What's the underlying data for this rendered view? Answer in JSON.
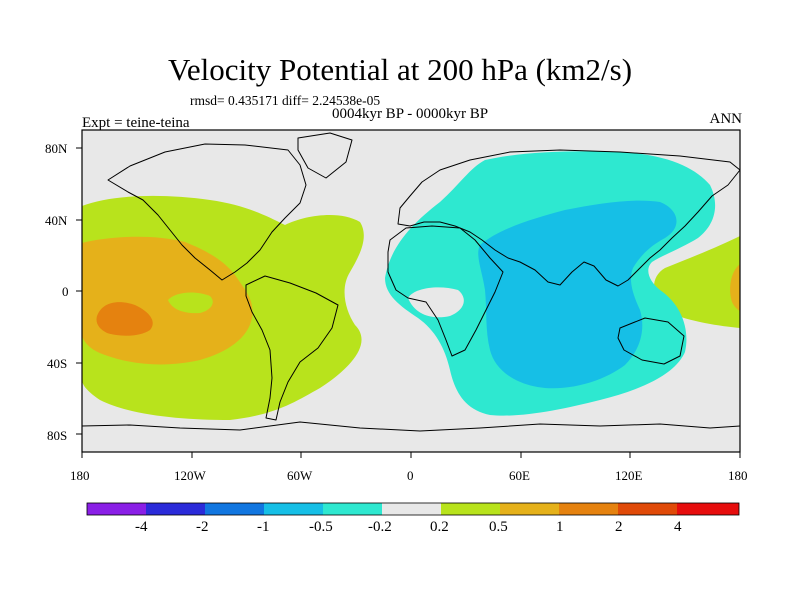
{
  "title": "Velocity Potential at 200 hPa (km2/s)",
  "stats_text": "rmsd= 0.435171  diff= 2.24538e-05",
  "period": "0004kyr BP - 0000kyr BP",
  "experiment": "Expt = teine-teina",
  "season": "ANN",
  "map": {
    "projection": "cylindrical-equidistant",
    "lon_range": [
      -180,
      180
    ],
    "lat_range": [
      -90,
      90
    ],
    "x_ticks": [
      {
        "lon": -180,
        "label": "180"
      },
      {
        "lon": -120,
        "label": "120W"
      },
      {
        "lon": -60,
        "label": "60W"
      },
      {
        "lon": 0,
        "label": "0"
      },
      {
        "lon": 60,
        "label": "60E"
      },
      {
        "lon": 120,
        "label": "120E"
      },
      {
        "lon": 180,
        "label": "180"
      }
    ],
    "y_ticks": [
      {
        "lat": 80,
        "label": "80N"
      },
      {
        "lat": 40,
        "label": "40N"
      },
      {
        "lat": 0,
        "label": "0"
      },
      {
        "lat": -40,
        "label": "40S"
      },
      {
        "lat": -80,
        "label": "80S"
      }
    ]
  },
  "colorbar": {
    "colors": [
      "#8a1fe6",
      "#2b2bd9",
      "#1176e0",
      "#16bfe6",
      "#2ee8d0",
      "#e8e8e8",
      "#b8e31c",
      "#e5b11a",
      "#e5820f",
      "#e04a08",
      "#e60d0d"
    ],
    "labels": [
      "-4",
      "-2",
      "-1",
      "-0.5",
      "-0.2",
      "0.2",
      "0.5",
      "1",
      "2",
      "4"
    ]
  }
}
